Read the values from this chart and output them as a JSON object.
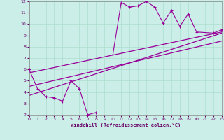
{
  "xlabel": "Windchill (Refroidissement éolien,°C)",
  "background_color": "#cceee8",
  "grid_color": "#aaddcc",
  "line_color": "#990099",
  "xlim": [
    0,
    23
  ],
  "ylim": [
    2,
    12
  ],
  "xticks": [
    0,
    1,
    2,
    3,
    4,
    5,
    6,
    7,
    8,
    9,
    10,
    11,
    12,
    13,
    14,
    15,
    16,
    17,
    18,
    19,
    20,
    21,
    22,
    23
  ],
  "yticks": [
    2,
    3,
    4,
    5,
    6,
    7,
    8,
    9,
    10,
    11,
    12
  ],
  "series1_x": [
    0,
    1,
    2,
    3,
    4,
    5,
    6,
    7,
    8,
    10,
    11,
    12,
    13,
    14,
    15,
    16,
    17,
    18,
    19,
    20,
    22,
    23
  ],
  "series1_y": [
    6.0,
    4.3,
    3.6,
    3.5,
    3.2,
    5.0,
    4.3,
    2.0,
    2.2,
    7.3,
    11.9,
    11.5,
    11.6,
    12.0,
    11.5,
    10.1,
    11.2,
    9.8,
    10.9,
    9.3,
    9.2,
    9.5
  ],
  "series1_gaps_after": [
    8
  ],
  "trend1_x": [
    0,
    23
  ],
  "trend1_y": [
    3.7,
    9.2
  ],
  "trend2_x": [
    0,
    23
  ],
  "trend2_y": [
    4.5,
    8.5
  ],
  "trend3_x": [
    0,
    23
  ],
  "trend3_y": [
    5.7,
    9.3
  ]
}
